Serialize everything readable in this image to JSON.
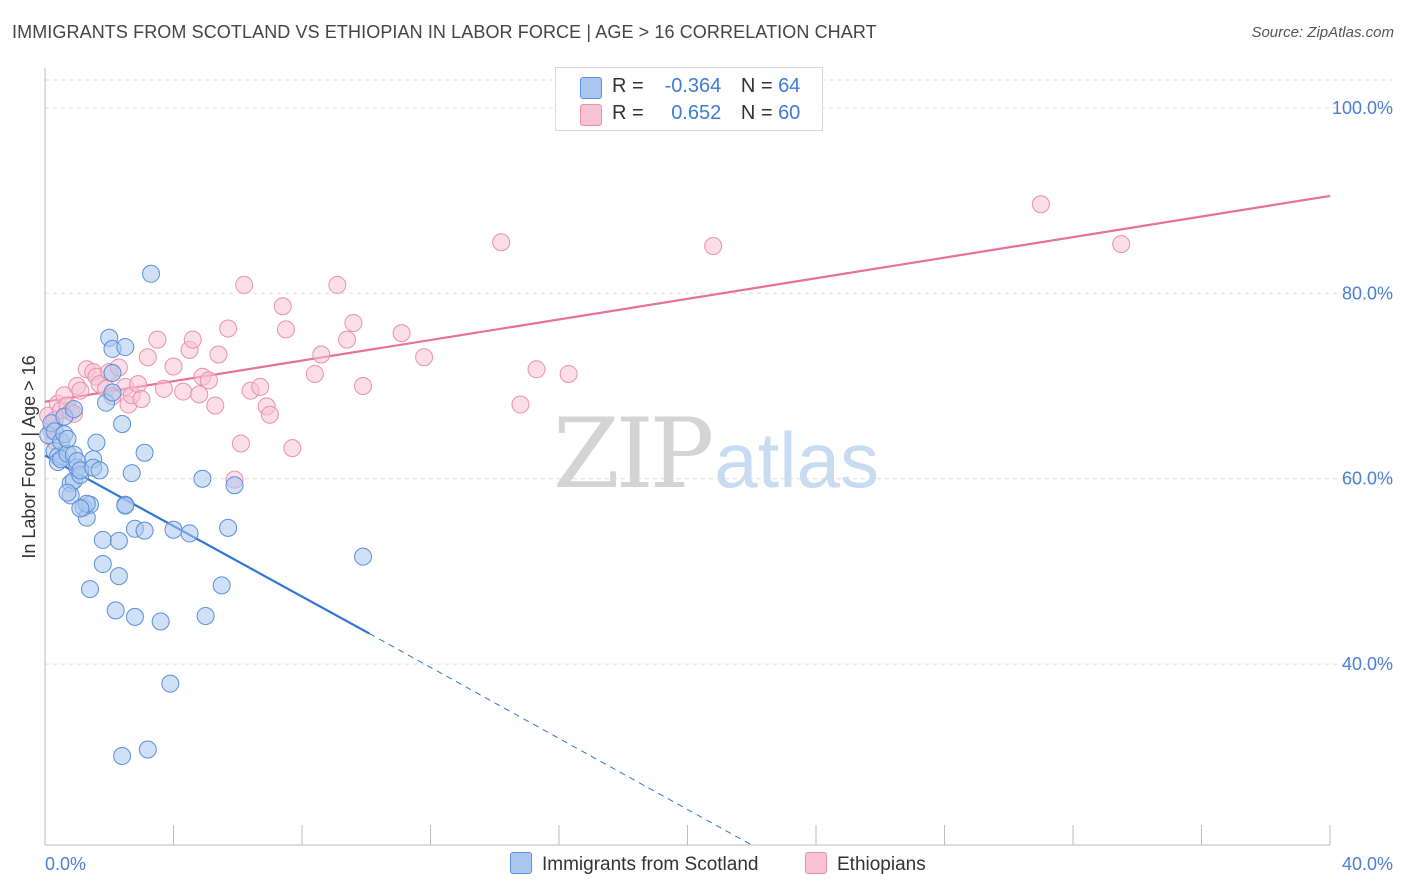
{
  "title": "IMMIGRANTS FROM SCOTLAND VS ETHIOPIAN IN LABOR FORCE | AGE > 16 CORRELATION CHART",
  "source": "Source: ZipAtlas.com",
  "watermark": {
    "zip": "ZIP",
    "atlas": "atlas"
  },
  "colors": {
    "scotland_fill": "#a9c6ee",
    "scotland_stroke": "#5b8fd6",
    "scotland_line": "#2f74d6",
    "ethiopian_fill": "#f8c2d3",
    "ethiopian_stroke": "#e890ae",
    "ethiopian_line": "#e8709a",
    "tick_label": "#4a7fd4"
  },
  "legend_top": {
    "rows": [
      {
        "r_label": "R =",
        "r_value": "-0.364",
        "n_label": "N =",
        "n_value": "64"
      },
      {
        "r_label": "R =",
        "r_value": "0.652",
        "n_label": "N =",
        "n_value": "60"
      }
    ]
  },
  "legend_bottom": {
    "scotland": "Immigrants from Scotland",
    "ethiopians": "Ethiopians"
  },
  "chart_data": {
    "type": "scatter",
    "title": "IMMIGRANTS FROM SCOTLAND VS ETHIOPIAN IN LABOR FORCE | AGE > 16 CORRELATION CHART",
    "xlabel": "",
    "ylabel": "In Labor Force | Age > 16",
    "xlim": [
      0,
      40
    ],
    "ylim": [
      20.5,
      103
    ],
    "x_tick_labels": [
      "0.0%",
      "40.0%"
    ],
    "y_ticks": [
      40,
      60,
      80,
      100
    ],
    "y_tick_labels": [
      "40.0%",
      "60.0%",
      "80.0%",
      "100.0%"
    ],
    "grid": "horizontal dashed",
    "legend": "top-center",
    "series": [
      {
        "name": "Immigrants from Scotland",
        "r": -0.364,
        "n": 64,
        "trend": {
          "x0": 0.0,
          "y0": 62.5,
          "x1": 10.1,
          "y1": 43.3,
          "dashed_to": [
            22.0,
            20.5
          ]
        },
        "points": [
          [
            0.1,
            64.7
          ],
          [
            0.2,
            66.0
          ],
          [
            0.3,
            65.1
          ],
          [
            0.3,
            63.0
          ],
          [
            0.4,
            62.4
          ],
          [
            0.4,
            61.8
          ],
          [
            0.5,
            64.0
          ],
          [
            0.5,
            62.1
          ],
          [
            0.6,
            64.8
          ],
          [
            0.6,
            66.7
          ],
          [
            0.7,
            62.7
          ],
          [
            0.7,
            64.3
          ],
          [
            0.8,
            59.5
          ],
          [
            0.8,
            58.2
          ],
          [
            0.9,
            62.6
          ],
          [
            0.9,
            59.8
          ],
          [
            1.0,
            61.2
          ],
          [
            1.0,
            61.9
          ],
          [
            1.1,
            60.4
          ],
          [
            1.1,
            60.9
          ],
          [
            1.2,
            56.9
          ],
          [
            1.3,
            55.8
          ],
          [
            1.4,
            57.2
          ],
          [
            1.4,
            48.1
          ],
          [
            1.5,
            62.1
          ],
          [
            1.5,
            61.2
          ],
          [
            1.6,
            63.9
          ],
          [
            1.7,
            60.9
          ],
          [
            1.8,
            53.4
          ],
          [
            1.8,
            50.8
          ],
          [
            1.9,
            68.2
          ],
          [
            2.0,
            75.2
          ],
          [
            2.1,
            74.0
          ],
          [
            2.1,
            71.4
          ],
          [
            2.1,
            69.3
          ],
          [
            2.2,
            45.8
          ],
          [
            2.3,
            49.5
          ],
          [
            2.3,
            53.3
          ],
          [
            2.4,
            65.9
          ],
          [
            2.5,
            74.2
          ],
          [
            2.5,
            57.2
          ],
          [
            2.5,
            57.1
          ],
          [
            2.7,
            60.6
          ],
          [
            2.8,
            54.6
          ],
          [
            2.8,
            45.1
          ],
          [
            3.1,
            62.8
          ],
          [
            3.1,
            54.4
          ],
          [
            3.2,
            30.8
          ],
          [
            3.3,
            82.1
          ],
          [
            3.6,
            44.6
          ],
          [
            3.9,
            37.9
          ],
          [
            4.0,
            54.5
          ],
          [
            4.5,
            54.1
          ],
          [
            4.9,
            60.0
          ],
          [
            5.0,
            45.2
          ],
          [
            5.5,
            48.5
          ],
          [
            5.7,
            54.7
          ],
          [
            5.9,
            59.3
          ],
          [
            9.9,
            51.6
          ],
          [
            2.4,
            30.1
          ],
          [
            1.3,
            57.3
          ],
          [
            0.9,
            67.5
          ],
          [
            0.7,
            58.5
          ],
          [
            1.1,
            56.8
          ]
        ]
      },
      {
        "name": "Ethiopians",
        "r": 0.652,
        "n": 60,
        "trend": {
          "x0": 0.0,
          "y0": 68.3,
          "x1": 40.0,
          "y1": 90.5
        },
        "points": [
          [
            0.1,
            66.8
          ],
          [
            0.2,
            65.2
          ],
          [
            0.3,
            66.3
          ],
          [
            0.3,
            64.1
          ],
          [
            0.4,
            68.1
          ],
          [
            0.5,
            67.4
          ],
          [
            0.6,
            69.0
          ],
          [
            0.7,
            67.9
          ],
          [
            0.8,
            67.2
          ],
          [
            0.9,
            67.0
          ],
          [
            1.0,
            70.0
          ],
          [
            1.1,
            69.5
          ],
          [
            1.3,
            71.8
          ],
          [
            1.5,
            71.5
          ],
          [
            1.6,
            71.0
          ],
          [
            1.7,
            70.2
          ],
          [
            1.9,
            69.7
          ],
          [
            2.0,
            71.5
          ],
          [
            2.1,
            68.9
          ],
          [
            2.3,
            72.0
          ],
          [
            2.5,
            69.9
          ],
          [
            2.6,
            68.0
          ],
          [
            2.7,
            69.0
          ],
          [
            2.9,
            70.2
          ],
          [
            3.0,
            68.6
          ],
          [
            3.2,
            73.1
          ],
          [
            3.5,
            75.0
          ],
          [
            3.7,
            69.7
          ],
          [
            4.0,
            72.1
          ],
          [
            4.3,
            69.4
          ],
          [
            4.5,
            73.9
          ],
          [
            4.6,
            75.0
          ],
          [
            4.8,
            69.1
          ],
          [
            4.9,
            71.0
          ],
          [
            5.1,
            70.6
          ],
          [
            5.3,
            67.9
          ],
          [
            5.4,
            73.4
          ],
          [
            5.7,
            76.2
          ],
          [
            5.9,
            59.9
          ],
          [
            6.1,
            63.8
          ],
          [
            6.2,
            80.9
          ],
          [
            6.4,
            69.5
          ],
          [
            6.7,
            69.9
          ],
          [
            6.9,
            67.8
          ],
          [
            7.0,
            66.9
          ],
          [
            7.4,
            78.6
          ],
          [
            7.5,
            76.1
          ],
          [
            7.7,
            63.3
          ],
          [
            8.4,
            71.3
          ],
          [
            8.6,
            73.4
          ],
          [
            9.1,
            80.9
          ],
          [
            9.4,
            75.0
          ],
          [
            9.6,
            76.8
          ],
          [
            9.9,
            70.0
          ],
          [
            11.1,
            75.7
          ],
          [
            11.8,
            73.1
          ],
          [
            14.2,
            85.5
          ],
          [
            14.8,
            68.0
          ],
          [
            15.3,
            71.8
          ],
          [
            16.3,
            71.3
          ]
        ],
        "extra_points": [
          [
            20.8,
            85.1
          ],
          [
            31.0,
            89.6
          ],
          [
            33.5,
            85.3
          ]
        ]
      }
    ]
  }
}
